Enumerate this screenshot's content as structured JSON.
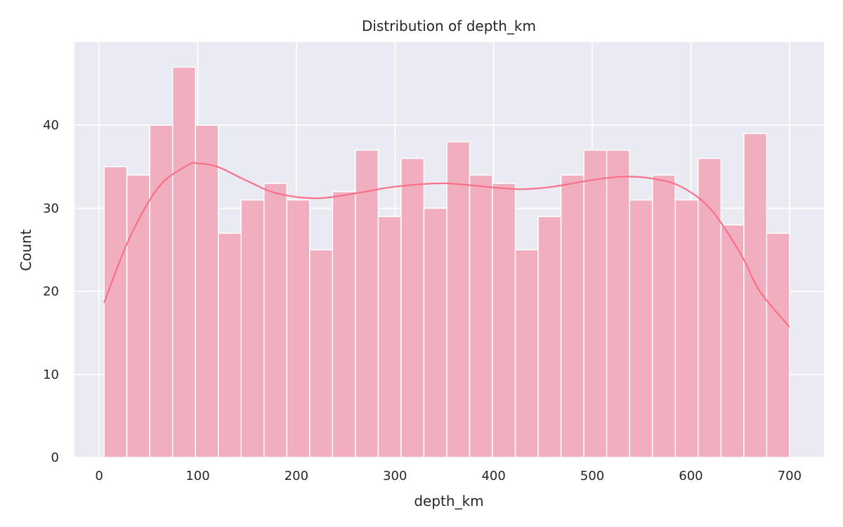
{
  "chart_data": {
    "type": "bar",
    "title": "Distribution of depth_km",
    "xlabel": "depth_km",
    "ylabel": "Count",
    "xlim": [
      -25,
      735
    ],
    "ylim": [
      0,
      50
    ],
    "xticks": [
      0,
      100,
      200,
      300,
      400,
      500,
      600,
      700
    ],
    "yticks": [
      0,
      10,
      20,
      30,
      40
    ],
    "grid": true,
    "bin_edges": [
      5.0,
      28.17,
      51.33,
      74.5,
      97.67,
      120.83,
      144.0,
      167.17,
      190.33,
      213.5,
      236.67,
      259.83,
      283.0,
      306.17,
      329.33,
      352.5,
      375.67,
      398.83,
      422.0,
      445.17,
      468.33,
      491.5,
      514.67,
      537.83,
      561.0,
      584.17,
      607.33,
      630.5,
      653.67,
      676.83,
      700.0
    ],
    "counts": [
      35,
      34,
      40,
      47,
      40,
      27,
      31,
      33,
      31,
      25,
      32,
      37,
      29,
      36,
      30,
      38,
      34,
      33,
      25,
      29,
      34,
      37,
      37,
      31,
      34,
      31,
      36,
      28,
      39,
      27
    ],
    "kde": {
      "x": [
        5,
        30,
        60,
        90,
        100,
        120,
        150,
        180,
        220,
        260,
        300,
        350,
        400,
        430,
        460,
        500,
        530,
        560,
        590,
        620,
        650,
        670,
        700
      ],
      "y": [
        18.6,
        26.2,
        32.5,
        35.2,
        35.4,
        35.0,
        33.3,
        31.8,
        31.2,
        31.8,
        32.6,
        33.0,
        32.5,
        32.3,
        32.6,
        33.4,
        33.8,
        33.6,
        32.6,
        29.9,
        24.6,
        20.0,
        15.7
      ]
    },
    "colors": {
      "background": "#eaeaf2",
      "grid": "#ffffff",
      "bar_fill": "#f0aebf",
      "bar_edge": "#ffffff",
      "kde_line": "#f77189",
      "text": "#262626"
    }
  }
}
